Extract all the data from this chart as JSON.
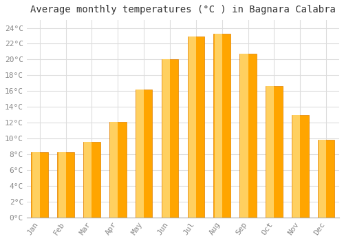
{
  "title": "Average monthly temperatures (°C ) in Bagnara Calabra",
  "months": [
    "Jan",
    "Feb",
    "Mar",
    "Apr",
    "May",
    "Jun",
    "Jul",
    "Aug",
    "Sep",
    "Oct",
    "Nov",
    "Dec"
  ],
  "values": [
    8.3,
    8.3,
    9.6,
    12.1,
    16.2,
    20.0,
    22.9,
    23.3,
    20.7,
    16.6,
    13.0,
    9.8
  ],
  "bar_color": "#FFA500",
  "bar_edge_color": "#E08000",
  "background_color": "#FFFFFF",
  "plot_bg_color": "#FFFFFF",
  "grid_color": "#DDDDDD",
  "ylim": [
    0,
    25
  ],
  "yticks": [
    0,
    2,
    4,
    6,
    8,
    10,
    12,
    14,
    16,
    18,
    20,
    22,
    24
  ],
  "title_fontsize": 10,
  "tick_fontsize": 8,
  "tick_font_color": "#888888",
  "title_color": "#333333"
}
